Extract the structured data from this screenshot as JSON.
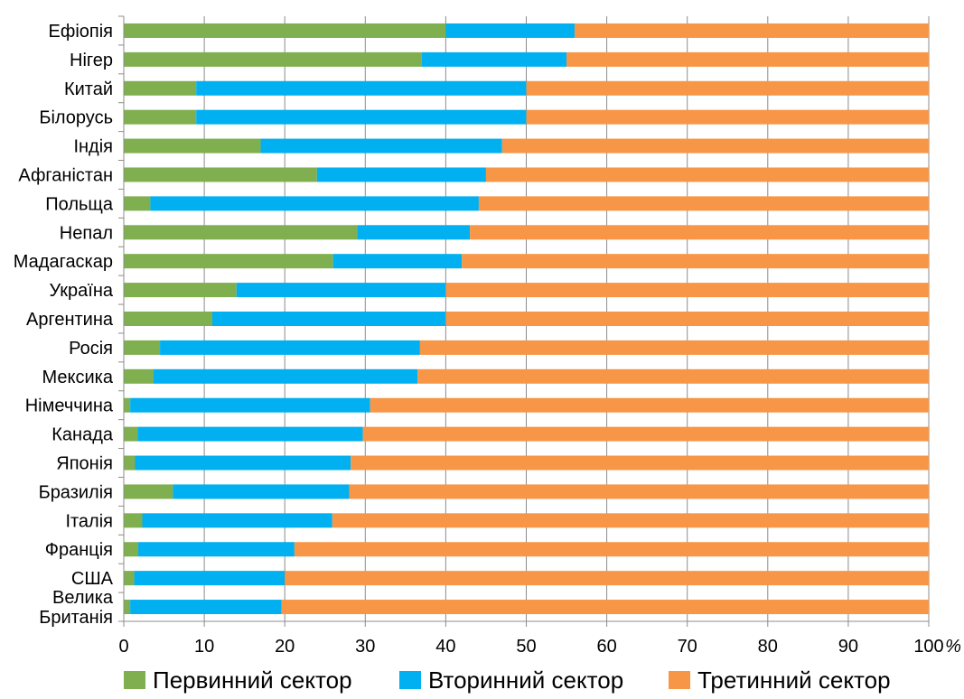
{
  "chart_data": {
    "type": "bar",
    "orientation": "horizontal",
    "stacked": true,
    "categories": [
      "Ефіопія",
      "Нігер",
      "Китай",
      "Білорусь",
      "Індія",
      "Афганістан",
      "Польща",
      "Непал",
      "Мадагаскар",
      "Україна",
      "Аргентина",
      "Росія",
      "Мексика",
      "Німеччина",
      "Канада",
      "Японія",
      "Бразилія",
      "Італія",
      "Франція",
      "США",
      "Велика Британія"
    ],
    "category_display": [
      [
        "Ефіопія"
      ],
      [
        "Нігер"
      ],
      [
        "Китай"
      ],
      [
        "Білорусь"
      ],
      [
        "Індія"
      ],
      [
        "Афганістан"
      ],
      [
        "Польща"
      ],
      [
        "Непал"
      ],
      [
        "Мадагаскар"
      ],
      [
        "Україна"
      ],
      [
        "Аргентина"
      ],
      [
        "Росія"
      ],
      [
        "Мексика"
      ],
      [
        "Німеччина"
      ],
      [
        "Канада"
      ],
      [
        "Японія"
      ],
      [
        "Бразилія"
      ],
      [
        "Італія"
      ],
      [
        "Франція"
      ],
      [
        "США"
      ],
      [
        "Велика",
        "Британія"
      ]
    ],
    "series": [
      {
        "name": "Первинний сектор",
        "color": "#7FAF4F",
        "values": [
          40,
          37,
          9,
          9,
          17,
          24,
          3.3,
          29,
          26,
          14,
          11,
          4.5,
          3.7,
          0.8,
          1.7,
          1.4,
          6.1,
          2.3,
          1.8,
          1.3,
          0.8
        ]
      },
      {
        "name": "Вторинний сектор",
        "color": "#00B0F0",
        "values": [
          16,
          18,
          41,
          41,
          30,
          21,
          40.8,
          14,
          16,
          26,
          29,
          32.3,
          32.8,
          29.8,
          28,
          26.8,
          21.9,
          23.6,
          19.4,
          18.7,
          18.8
        ]
      },
      {
        "name": "Третинний сектор",
        "color": "#F79646",
        "values": [
          44,
          45,
          50,
          50,
          53,
          55,
          55.9,
          57,
          58,
          60,
          60,
          63.2,
          63.5,
          69.4,
          70.3,
          71.8,
          72,
          74.1,
          78.8,
          80,
          80.4
        ]
      }
    ],
    "xlim": [
      0,
      100
    ],
    "xticks": [
      "0",
      "10",
      "20",
      "30",
      "40",
      "50",
      "60",
      "70",
      "80",
      "90",
      "100"
    ],
    "x_unit": "%",
    "grid": "vertical",
    "legend_position": "bottom"
  }
}
